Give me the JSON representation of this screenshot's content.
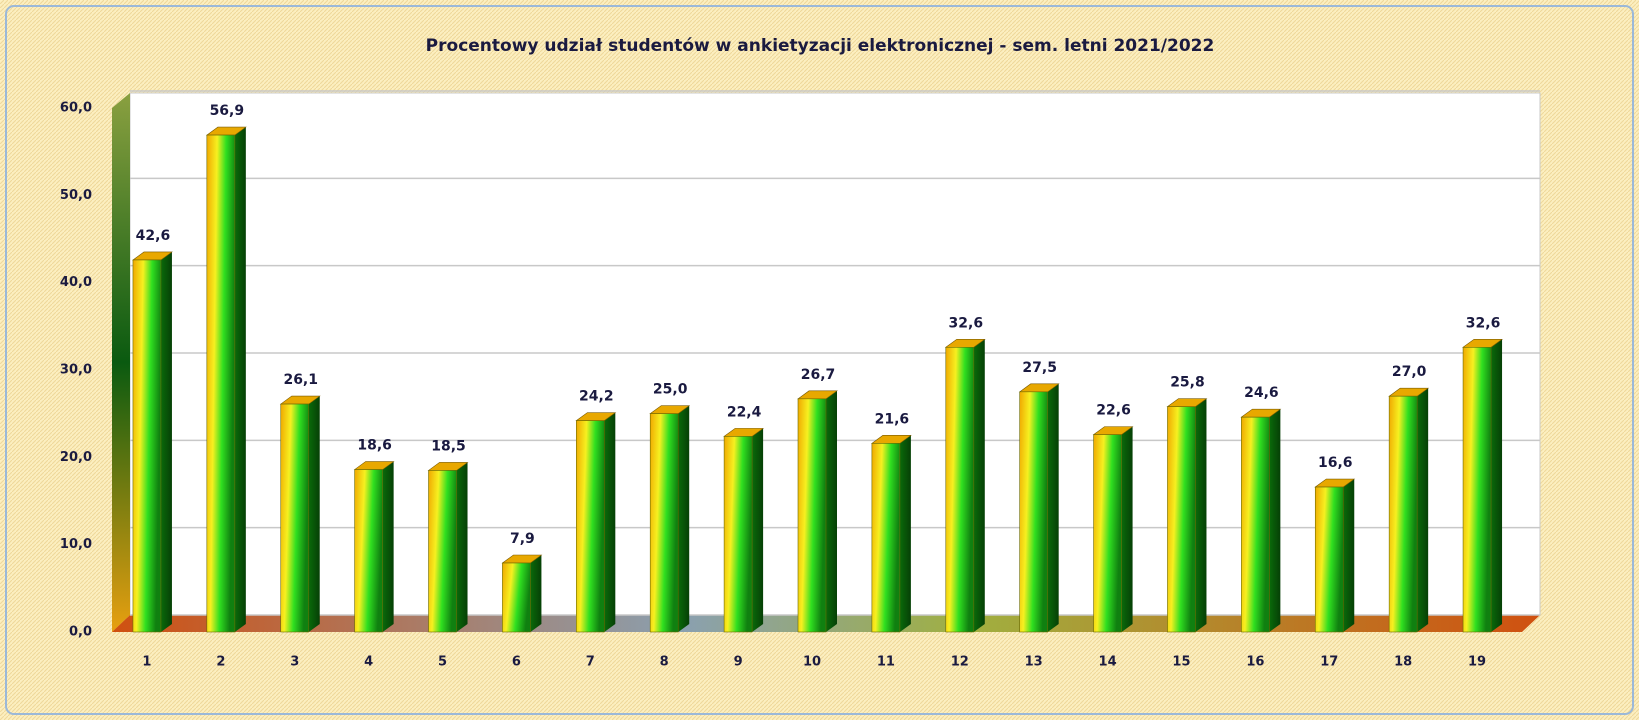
{
  "chart_data": {
    "type": "bar",
    "title": "Procentowy udział studentów w ankietyzacji elektronicznej - sem. letni 2021/2022",
    "categories": [
      "1",
      "2",
      "3",
      "4",
      "5",
      "6",
      "7",
      "8",
      "9",
      "10",
      "11",
      "12",
      "13",
      "14",
      "15",
      "16",
      "17",
      "18",
      "19"
    ],
    "values": [
      42.6,
      56.9,
      26.1,
      18.6,
      18.5,
      7.9,
      24.2,
      25.0,
      22.4,
      26.7,
      21.6,
      32.6,
      27.5,
      22.6,
      25.8,
      24.6,
      16.6,
      27.0,
      32.6
    ],
    "value_labels": [
      "42,6",
      "56,9",
      "26,1",
      "18,6",
      "18,5",
      "7,9",
      "24,2",
      "25,0",
      "22,4",
      "26,7",
      "21,6",
      "32,6",
      "27,5",
      "22,6",
      "25,8",
      "24,6",
      "16,6",
      "27,0",
      "32,6"
    ],
    "ylim": [
      0,
      60
    ],
    "yticks": [
      {
        "value": 0,
        "label": "0,0"
      },
      {
        "value": 10,
        "label": "10,0"
      },
      {
        "value": 20,
        "label": "20,0"
      },
      {
        "value": 30,
        "label": "30,0"
      },
      {
        "value": 40,
        "label": "40,0"
      },
      {
        "value": 50,
        "label": "50,0"
      },
      {
        "value": 60,
        "label": "60,0"
      }
    ],
    "grid": true
  }
}
